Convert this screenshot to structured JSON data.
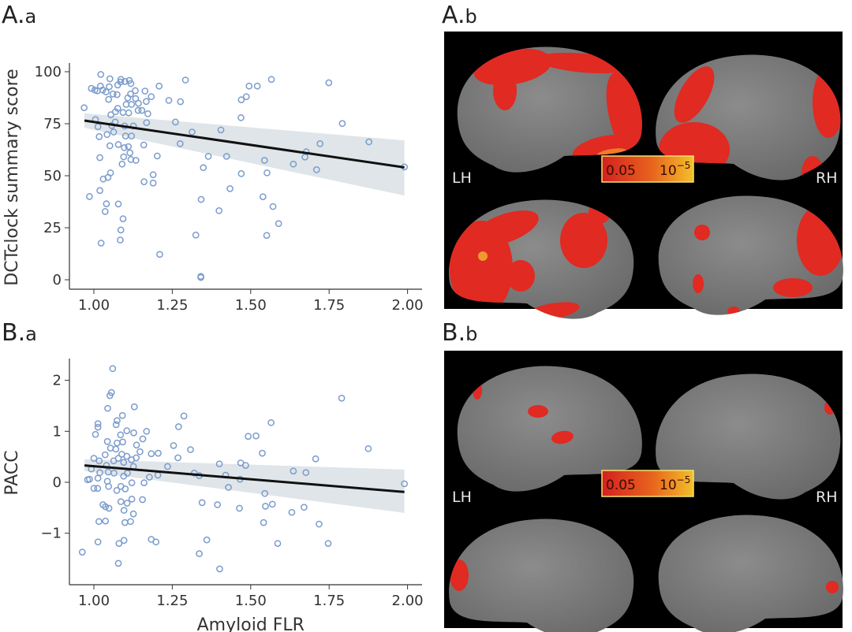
{
  "panels": {
    "Aa": {
      "letter": "A.",
      "sub": "a"
    },
    "Ab": {
      "letter": "A.",
      "sub": "b"
    },
    "Ba": {
      "letter": "B.",
      "sub": "a"
    },
    "Bb": {
      "letter": "B.",
      "sub": "b"
    }
  },
  "brain_maps": {
    "left_label": "LH",
    "right_label": "RH",
    "colorbar": {
      "low": "0.05",
      "high_base": "10",
      "high_exp": "−5",
      "colors": [
        "#d42020",
        "#e8641e",
        "#f3c02a"
      ]
    },
    "background": "#000000",
    "cortex_color": "#808080",
    "significance_color": "#e02a22"
  },
  "chart_data": [
    {
      "type": "scatter",
      "panel": "A.a",
      "xlabel": "",
      "ylabel": "DCTclock summary score",
      "xlim": [
        0.95,
        2.02
      ],
      "ylim": [
        0,
        100
      ],
      "xticks": [
        "1.00",
        "1.25",
        "1.50",
        "1.75",
        "2.00"
      ],
      "yticks": [
        "0",
        "25",
        "50",
        "75",
        "100"
      ],
      "grid": false,
      "marker": "open-circle",
      "marker_color": "#7b9ccc",
      "fit_line": {
        "x": [
          0.97,
          1.99
        ],
        "y": [
          76.5,
          54.0
        ],
        "color": "#111111"
      },
      "ci_band": {
        "x": [
          0.97,
          1.99
        ],
        "upper": [
          80.0,
          67.0
        ],
        "lower": [
          73.0,
          40.5
        ],
        "color": "#dfe5e8"
      },
      "points": [
        [
          1.022,
          98.7
        ],
        [
          1.051,
          96.6
        ],
        [
          1.086,
          96.3
        ],
        [
          1.113,
          95.8
        ],
        [
          1.085,
          95.1
        ],
        [
          1.099,
          95.3
        ],
        [
          1.118,
          94.3
        ],
        [
          1.076,
          93.6
        ],
        [
          1.049,
          92.8
        ],
        [
          1.021,
          93.1
        ],
        [
          0.992,
          92.0
        ],
        [
          1.003,
          91.2
        ],
        [
          1.011,
          90.8
        ],
        [
          1.028,
          91.2
        ],
        [
          1.039,
          90.3
        ],
        [
          1.061,
          89.3
        ],
        [
          1.074,
          89.0
        ],
        [
          1.047,
          86.7
        ],
        [
          1.117,
          89.3
        ],
        [
          1.132,
          90.9
        ],
        [
          1.163,
          90.7
        ],
        [
          1.183,
          88.0
        ],
        [
          1.167,
          85.7
        ],
        [
          1.108,
          87.4
        ],
        [
          1.133,
          87.1
        ],
        [
          1.103,
          84.3
        ],
        [
          1.12,
          84.3
        ],
        [
          1.142,
          84.8
        ],
        [
          1.076,
          82.4
        ],
        [
          1.069,
          80.8
        ],
        [
          1.093,
          80.4
        ],
        [
          1.111,
          80.2
        ],
        [
          1.141,
          81.4
        ],
        [
          1.153,
          81.4
        ],
        [
          1.172,
          79.8
        ],
        [
          1.054,
          79.3
        ],
        [
          0.969,
          82.7
        ],
        [
          1.208,
          93.1
        ],
        [
          1.292,
          96.0
        ],
        [
          1.239,
          86.2
        ],
        [
          1.276,
          85.6
        ],
        [
          1.566,
          96.3
        ],
        [
          1.495,
          93.1
        ],
        [
          1.521,
          93.1
        ],
        [
          1.47,
          86.5
        ],
        [
          1.486,
          88.0
        ],
        [
          1.749,
          94.7
        ],
        [
          1.005,
          77.0
        ],
        [
          1.013,
          73.6
        ],
        [
          1.068,
          75.8
        ],
        [
          1.057,
          74.1
        ],
        [
          1.098,
          73.9
        ],
        [
          1.126,
          73.9
        ],
        [
          1.168,
          75.5
        ],
        [
          1.26,
          75.8
        ],
        [
          1.469,
          77.9
        ],
        [
          1.792,
          75.1
        ],
        [
          1.017,
          68.8
        ],
        [
          1.042,
          69.8
        ],
        [
          1.063,
          71.0
        ],
        [
          1.101,
          69.1
        ],
        [
          1.12,
          69.1
        ],
        [
          1.313,
          71.0
        ],
        [
          1.405,
          72.0
        ],
        [
          1.275,
          65.4
        ],
        [
          1.051,
          64.4
        ],
        [
          1.078,
          65.0
        ],
        [
          1.097,
          63.5
        ],
        [
          1.11,
          64.0
        ],
        [
          1.159,
          64.8
        ],
        [
          1.115,
          61.0
        ],
        [
          1.095,
          59.1
        ],
        [
          1.118,
          57.8
        ],
        [
          1.134,
          57.4
        ],
        [
          1.019,
          58.7
        ],
        [
          1.09,
          55.6
        ],
        [
          1.202,
          59.5
        ],
        [
          1.365,
          59.3
        ],
        [
          1.423,
          59.3
        ],
        [
          1.721,
          65.4
        ],
        [
          1.877,
          66.3
        ],
        [
          1.677,
          61.5
        ],
        [
          1.673,
          59.0
        ],
        [
          1.544,
          57.4
        ],
        [
          1.636,
          55.6
        ],
        [
          1.71,
          52.9
        ],
        [
          1.99,
          54.2
        ],
        [
          1.349,
          53.9
        ],
        [
          1.47,
          51.0
        ],
        [
          1.552,
          51.4
        ],
        [
          1.053,
          51.4
        ],
        [
          1.045,
          49.2
        ],
        [
          1.03,
          48.4
        ],
        [
          1.16,
          47.1
        ],
        [
          1.189,
          50.5
        ],
        [
          1.189,
          46.5
        ],
        [
          1.019,
          42.9
        ],
        [
          0.986,
          40.0
        ],
        [
          1.434,
          43.8
        ],
        [
          1.04,
          36.5
        ],
        [
          1.078,
          36.4
        ],
        [
          1.036,
          32.8
        ],
        [
          1.342,
          38.6
        ],
        [
          1.539,
          39.9
        ],
        [
          1.571,
          35.2
        ],
        [
          1.399,
          33.2
        ],
        [
          1.093,
          29.3
        ],
        [
          1.589,
          27.0
        ],
        [
          1.086,
          23.9
        ],
        [
          1.084,
          19.1
        ],
        [
          1.023,
          17.6
        ],
        [
          1.325,
          21.5
        ],
        [
          1.551,
          21.3
        ],
        [
          1.21,
          12.2
        ],
        [
          1.341,
          1.6
        ],
        [
          1.341,
          1.1
        ]
      ]
    },
    {
      "type": "scatter",
      "panel": "B.a",
      "xlabel": "Amyloid FLR",
      "ylabel": "PACC",
      "xlim": [
        0.95,
        2.02
      ],
      "ylim": [
        -1.8,
        2.4
      ],
      "xticks": [
        "1.00",
        "1.25",
        "1.50",
        "1.75",
        "2.00"
      ],
      "yticks": [
        "−1",
        "0",
        "1",
        "2"
      ],
      "grid": false,
      "marker": "open-circle",
      "marker_color": "#7b9ccc",
      "fit_line": {
        "x": [
          0.97,
          1.99
        ],
        "y": [
          0.33,
          -0.19
        ],
        "color": "#111111"
      },
      "ci_band": {
        "x": [
          0.97,
          1.99
        ],
        "upper": [
          0.45,
          0.25
        ],
        "lower": [
          0.22,
          -0.6
        ],
        "color": "#dfe5e8"
      },
      "points": [
        [
          1.06,
          2.23
        ],
        [
          1.056,
          1.76
        ],
        [
          1.051,
          1.7
        ],
        [
          1.044,
          1.45
        ],
        [
          1.129,
          1.48
        ],
        [
          1.091,
          1.31
        ],
        [
          1.074,
          1.21
        ],
        [
          1.071,
          1.13
        ],
        [
          1.013,
          1.15
        ],
        [
          1.013,
          1.08
        ],
        [
          1.005,
          0.94
        ],
        [
          1.105,
          1.01
        ],
        [
          1.127,
          0.97
        ],
        [
          1.085,
          0.93
        ],
        [
          1.168,
          1.0
        ],
        [
          1.156,
          0.85
        ],
        [
          1.043,
          0.8
        ],
        [
          1.074,
          0.77
        ],
        [
          1.092,
          0.79
        ],
        [
          1.136,
          0.73
        ],
        [
          1.053,
          0.67
        ],
        [
          1.07,
          0.65
        ],
        [
          1.036,
          0.54
        ],
        [
          1.147,
          0.6
        ],
        [
          1.183,
          0.56
        ],
        [
          1.205,
          0.57
        ],
        [
          1.0,
          0.47
        ],
        [
          1.017,
          0.42
        ],
        [
          1.063,
          0.42
        ],
        [
          1.089,
          0.55
        ],
        [
          1.105,
          0.51
        ],
        [
          1.12,
          0.44
        ],
        [
          1.135,
          0.48
        ],
        [
          1.04,
          0.33
        ],
        [
          1.078,
          0.47
        ],
        [
          1.095,
          0.39
        ],
        [
          1.126,
          0.31
        ],
        [
          0.992,
          0.26
        ],
        [
          1.019,
          0.19
        ],
        [
          1.046,
          0.2
        ],
        [
          1.064,
          0.18
        ],
        [
          1.095,
          0.12
        ],
        [
          1.107,
          0.18
        ],
        [
          0.98,
          0.05
        ],
        [
          0.986,
          0.06
        ],
        [
          1.013,
          0.08
        ],
        [
          1.043,
          0.02
        ],
        [
          1.047,
          -0.08
        ],
        [
          1.0,
          -0.12
        ],
        [
          1.012,
          -0.12
        ],
        [
          1.073,
          -0.16
        ],
        [
          1.086,
          -0.08
        ],
        [
          1.1,
          -0.13
        ],
        [
          1.121,
          -0.01
        ],
        [
          1.16,
          -0.01
        ],
        [
          1.177,
          0.1
        ],
        [
          1.204,
          0.14
        ],
        [
          1.235,
          0.31
        ],
        [
          1.254,
          0.72
        ],
        [
          1.27,
          1.09
        ],
        [
          1.287,
          1.3
        ],
        [
          1.268,
          0.48
        ],
        [
          1.308,
          0.64
        ],
        [
          1.32,
          0.18
        ],
        [
          1.336,
          0.13
        ],
        [
          1.4,
          0.36
        ],
        [
          1.42,
          0.14
        ],
        [
          1.429,
          -0.1
        ],
        [
          1.466,
          0.06
        ],
        [
          1.468,
          0.38
        ],
        [
          1.484,
          0.33
        ],
        [
          1.492,
          0.9
        ],
        [
          1.517,
          0.91
        ],
        [
          1.537,
          0.57
        ],
        [
          1.565,
          1.17
        ],
        [
          1.636,
          0.22
        ],
        [
          1.676,
          0.19
        ],
        [
          1.707,
          0.46
        ],
        [
          1.79,
          1.65
        ],
        [
          1.875,
          0.66
        ],
        [
          1.99,
          -0.03
        ],
        [
          1.545,
          -0.22
        ],
        [
          1.547,
          -0.47
        ],
        [
          1.569,
          -0.43
        ],
        [
          1.631,
          -0.59
        ],
        [
          1.67,
          -0.49
        ],
        [
          1.718,
          -0.82
        ],
        [
          1.541,
          -0.79
        ],
        [
          1.586,
          -1.2
        ],
        [
          1.747,
          -1.2
        ],
        [
          1.464,
          -0.51
        ],
        [
          1.394,
          -0.44
        ],
        [
          1.345,
          -0.4
        ],
        [
          1.36,
          -1.13
        ],
        [
          1.336,
          -1.4
        ],
        [
          1.401,
          -1.7
        ],
        [
          1.029,
          -0.44
        ],
        [
          1.037,
          -0.48
        ],
        [
          1.048,
          -0.51
        ],
        [
          1.086,
          -0.38
        ],
        [
          1.106,
          -0.41
        ],
        [
          1.121,
          -0.33
        ],
        [
          1.155,
          -0.34
        ],
        [
          1.096,
          -0.55
        ],
        [
          1.126,
          -0.62
        ],
        [
          1.016,
          -0.77
        ],
        [
          1.037,
          -0.76
        ],
        [
          1.099,
          -0.79
        ],
        [
          1.117,
          -0.77
        ],
        [
          1.013,
          -1.17
        ],
        [
          1.08,
          -1.2
        ],
        [
          1.096,
          -1.14
        ],
        [
          1.183,
          -1.12
        ],
        [
          1.198,
          -1.17
        ],
        [
          0.963,
          -1.37
        ],
        [
          1.078,
          -1.59
        ]
      ]
    }
  ]
}
